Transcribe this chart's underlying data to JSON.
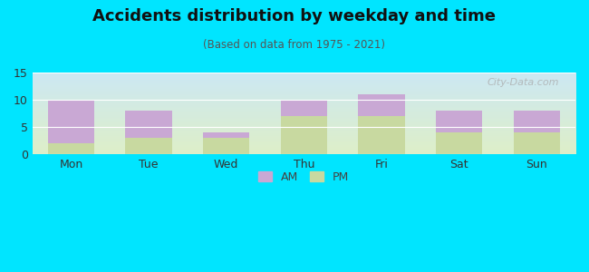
{
  "categories": [
    "Mon",
    "Tue",
    "Wed",
    "Thu",
    "Fri",
    "Sat",
    "Sun"
  ],
  "pm_values": [
    2,
    3,
    3,
    7,
    7,
    4,
    4
  ],
  "am_values": [
    8,
    5,
    1,
    3,
    4,
    4,
    4
  ],
  "am_color": "#c9a8d4",
  "pm_color": "#c8d9a0",
  "title": "Accidents distribution by weekday and time",
  "subtitle": "(Based on data from 1975 - 2021)",
  "ylim": [
    0,
    15
  ],
  "yticks": [
    0,
    5,
    10,
    15
  ],
  "background_color": "#00e5ff",
  "plot_bg_top": "#cce8f4",
  "plot_bg_bottom": "#deefc8",
  "watermark": "City-Data.com",
  "legend_labels": [
    "AM",
    "PM"
  ]
}
